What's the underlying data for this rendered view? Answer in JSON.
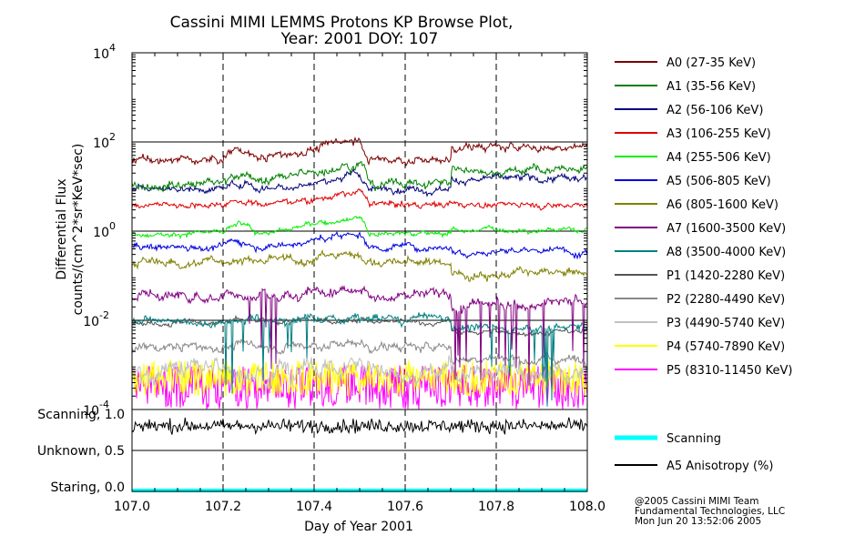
{
  "chart_data": {
    "type": "line",
    "title": "Cassini MIMI LEMMS Protons KP Browse Plot,",
    "subtitle": "Year: 2001 DOY: 107",
    "xlabel": "Day of Year 2001",
    "ylabel": "Differential Flux",
    "ylabel2": "counts/(cm^2*sr*KeV*sec)",
    "xlim": [
      107.0,
      108.0
    ],
    "ylim": [
      0.0001,
      10000
    ],
    "yscale": "log",
    "x_ticks": [
      "107.0",
      "107.2",
      "107.4",
      "107.6",
      "107.8",
      "108.0"
    ],
    "y_ticks": [
      {
        "base": "10",
        "exp": "4",
        "value": 10000
      },
      {
        "base": "10",
        "exp": "2",
        "value": 100
      },
      {
        "base": "10",
        "exp": "0",
        "value": 1
      },
      {
        "base": "10",
        "exp": "-2",
        "value": 0.01
      },
      {
        "base": "10",
        "exp": "-4",
        "value": 0.0001
      }
    ],
    "grid": "dashed vertical lines at 107.2, 107.4, 107.6, 107.8; solid horizontal lines at 10^2, 10^0, 10^-2",
    "legend_position": "right",
    "series": [
      {
        "name": "A0 (27-35 KeV)",
        "color": "#7a0000",
        "level": 40,
        "event": 3.0,
        "trend": 1.9,
        "noise": 0.09,
        "spikes": 0
      },
      {
        "name": "A1 (35-56 KeV)",
        "color": "#008000",
        "level": 12,
        "event": 3.2,
        "trend": 2.0,
        "noise": 0.1,
        "spikes": 0
      },
      {
        "name": "A2 (56-106 KeV)",
        "color": "#00007a",
        "level": 9,
        "event": 2.0,
        "trend": 1.6,
        "noise": 0.08,
        "spikes": 0
      },
      {
        "name": "A3 (106-255 KeV)",
        "color": "#e00000",
        "level": 4,
        "event": 1.9,
        "trend": 1.0,
        "noise": 0.07,
        "spikes": 0
      },
      {
        "name": "A4 (255-506 KeV)",
        "color": "#00ee00",
        "level": 0.9,
        "event": 2.5,
        "trend": 1.2,
        "noise": 0.06,
        "spikes": 0
      },
      {
        "name": "A5 (506-805 KeV)",
        "color": "#0000dd",
        "level": 0.45,
        "event": 2.0,
        "trend": 0.8,
        "noise": 0.08,
        "spikes": 0
      },
      {
        "name": "A6 (805-1600 KeV)",
        "color": "#808000",
        "level": 0.2,
        "event": 1.7,
        "trend": 0.55,
        "noise": 0.1,
        "spikes": 0
      },
      {
        "name": "A7 (1600-3500 KeV)",
        "color": "#800080",
        "level": 0.035,
        "event": 1.6,
        "trend": 0.6,
        "noise": 0.12,
        "spikes": 0.07
      },
      {
        "name": "A8 (3500-4000 KeV)",
        "color": "#008080",
        "level": 0.01,
        "event": 1.0,
        "trend": 0.7,
        "noise": 0.1,
        "spikes": 0.035
      },
      {
        "name": "P1 (1420-2280 KeV)",
        "color": "#555555",
        "level": 0.009,
        "event": 1.2,
        "trend": 0.6,
        "noise": 0.06,
        "spikes": 0
      },
      {
        "name": "P2 (2280-4490 KeV)",
        "color": "#888888",
        "level": 0.0025,
        "event": 1.3,
        "trend": 0.55,
        "noise": 0.1,
        "spikes": 0
      },
      {
        "name": "P3 (4490-5740 KeV)",
        "color": "#c0c0c0",
        "level": 0.0008,
        "event": 1.2,
        "trend": 0.8,
        "noise": 0.22,
        "spikes": 0
      },
      {
        "name": "P4 (5740-7890 KeV)",
        "color": "#ffff00",
        "level": 0.0004,
        "event": 1.0,
        "trend": 0.9,
        "noise": 0.22,
        "spikes": 0
      },
      {
        "name": "P5 (8310-11450 KeV)",
        "color": "#ff00ff",
        "level": 0.0001,
        "event": 1.0,
        "trend": 1.0,
        "noise": 0.5,
        "spikes": 0
      }
    ],
    "lower_panel": {
      "y_ticks": [
        "Staring, 0.0",
        "Unknown, 0.5",
        "Scanning, 1.0"
      ],
      "series": [
        {
          "name": "Scanning",
          "color": "#00ffff",
          "value": 0.0
        },
        {
          "name": "A5 Anisotropy (%)",
          "color": "#000000",
          "value": 0.8
        }
      ]
    }
  },
  "credits": [
    "@2005 Cassini MIMI Team",
    "Fundamental Technologies, LLC",
    "Mon Jun 20 13:52:06 2005"
  ]
}
